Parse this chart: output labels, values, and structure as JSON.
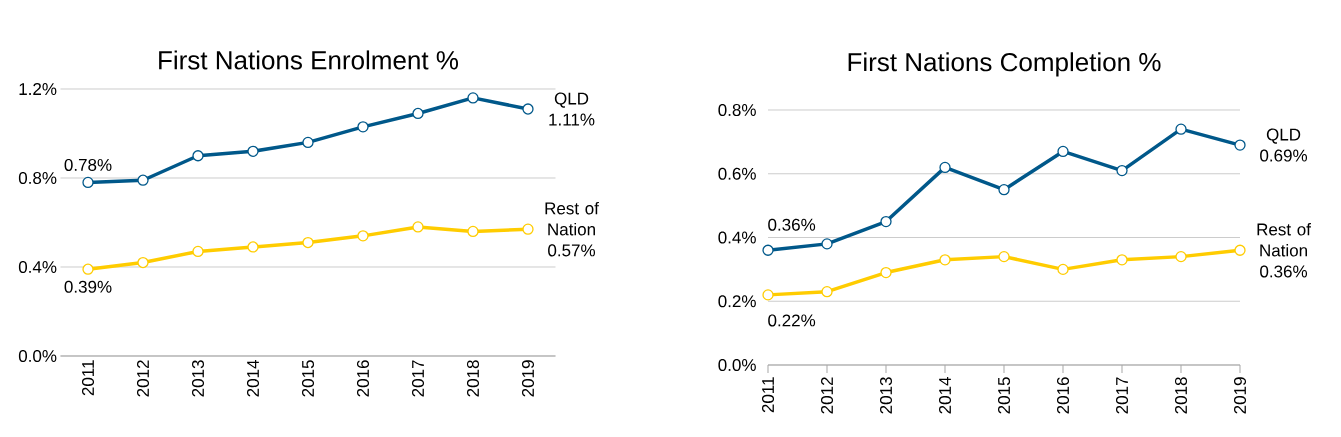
{
  "chart_data": [
    {
      "type": "line",
      "title": "First Nations Enrolment %",
      "categories": [
        "2011",
        "2012",
        "2013",
        "2014",
        "2015",
        "2016",
        "2017",
        "2018",
        "2019"
      ],
      "series": [
        {
          "name": "QLD",
          "color": "#00588a",
          "values": [
            0.78,
            0.79,
            0.9,
            0.92,
            0.96,
            1.03,
            1.09,
            1.16,
            1.11
          ],
          "value_labels": [
            "0.78%",
            null,
            null,
            null,
            null,
            null,
            null,
            null,
            "1.11%"
          ]
        },
        {
          "name": "Rest of Nation",
          "color": "#ffcc00",
          "values": [
            0.39,
            0.42,
            0.47,
            0.49,
            0.51,
            0.54,
            0.58,
            0.56,
            0.57
          ],
          "value_labels": [
            "0.39%",
            null,
            null,
            null,
            null,
            null,
            null,
            null,
            "0.57%"
          ]
        }
      ],
      "ylim": [
        0,
        1.2
      ],
      "yticks": [
        {
          "value": 0,
          "label": "0.0%"
        },
        {
          "value": 0.4,
          "label": "0.4%"
        },
        {
          "value": 0.8,
          "label": "0.8%"
        },
        {
          "value": 1.2,
          "label": "1.2%"
        }
      ],
      "grid": "y",
      "marker": "circle",
      "line_style": "solid"
    },
    {
      "type": "line",
      "title": "First Nations Completion %",
      "categories": [
        "2011",
        "2012",
        "2013",
        "2014",
        "2015",
        "2016",
        "2017",
        "2018",
        "2019"
      ],
      "series": [
        {
          "name": "QLD",
          "color": "#00588a",
          "values": [
            0.36,
            0.38,
            0.45,
            0.62,
            0.55,
            0.67,
            0.61,
            0.74,
            0.69
          ],
          "value_labels": [
            "0.36%",
            null,
            null,
            null,
            null,
            null,
            null,
            null,
            "0.69%"
          ]
        },
        {
          "name": "Rest of Nation",
          "color": "#ffcc00",
          "values": [
            0.22,
            0.23,
            0.29,
            0.33,
            0.34,
            0.3,
            0.33,
            0.34,
            0.36
          ],
          "value_labels": [
            "0.22%",
            null,
            null,
            null,
            null,
            null,
            null,
            null,
            "0.36%"
          ]
        }
      ],
      "ylim": [
        0,
        0.8
      ],
      "yticks": [
        {
          "value": 0,
          "label": "0.0%"
        },
        {
          "value": 0.2,
          "label": "0.2%"
        },
        {
          "value": 0.4,
          "label": "0.4%"
        },
        {
          "value": 0.6,
          "label": "0.6%"
        },
        {
          "value": 0.8,
          "label": "0.8%"
        }
      ],
      "grid": "y",
      "marker": "circle",
      "line_style": "solid"
    }
  ]
}
